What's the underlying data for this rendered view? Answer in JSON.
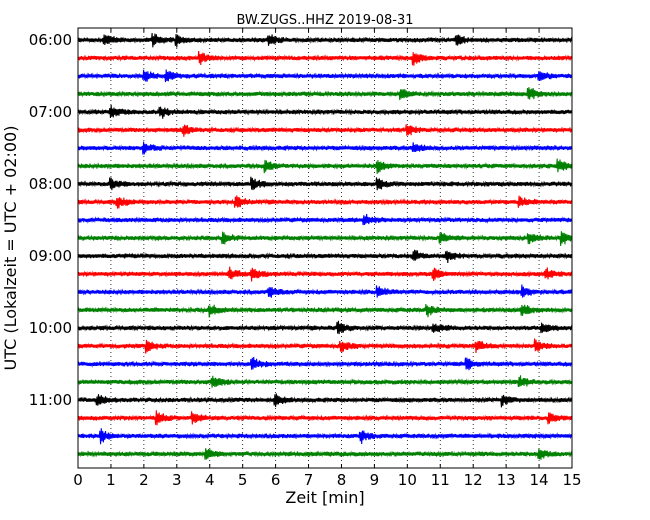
{
  "chart_data": {
    "type": "line",
    "title": "BW.ZUGS..HHZ 2019-08-31",
    "xlabel": "Zeit  [min]",
    "ylabel": "UTC (Lokalzeit = UTC + 02:00)",
    "xlim": [
      0,
      15
    ],
    "x_ticks": [
      "0",
      "1",
      "2",
      "3",
      "4",
      "5",
      "6",
      "7",
      "8",
      "9",
      "10",
      "11",
      "12",
      "13",
      "14",
      "15"
    ],
    "y_ticks": [
      "06:00",
      "07:00",
      "08:00",
      "09:00",
      "10:00",
      "11:00"
    ],
    "grid": "vertical dotted",
    "trace_colors": [
      "#000000",
      "#ff0000",
      "#0000ff",
      "#008000"
    ],
    "traces": [
      {
        "start": "06:00",
        "color": "#000000",
        "events": [
          0.8,
          2.3,
          3.0,
          5.8,
          11.5
        ]
      },
      {
        "start": "06:15",
        "color": "#ff0000",
        "events": [
          3.7,
          10.2
        ]
      },
      {
        "start": "06:30",
        "color": "#0000ff",
        "events": [
          2.0,
          2.7,
          14.0
        ]
      },
      {
        "start": "06:45",
        "color": "#008000",
        "events": [
          9.8,
          13.7
        ]
      },
      {
        "start": "07:00",
        "color": "#000000",
        "events": [
          1.0,
          2.5
        ]
      },
      {
        "start": "07:15",
        "color": "#ff0000",
        "events": [
          3.2,
          10.0
        ]
      },
      {
        "start": "07:30",
        "color": "#0000ff",
        "events": [
          2.0,
          10.2
        ]
      },
      {
        "start": "07:45",
        "color": "#008000",
        "events": [
          5.7,
          9.1,
          14.6
        ]
      },
      {
        "start": "08:00",
        "color": "#000000",
        "events": [
          1.0,
          5.3,
          9.1
        ]
      },
      {
        "start": "08:15",
        "color": "#ff0000",
        "events": [
          1.2,
          4.8,
          13.4
        ]
      },
      {
        "start": "08:30",
        "color": "#0000ff",
        "events": [
          8.7
        ]
      },
      {
        "start": "08:45",
        "color": "#008000",
        "events": [
          4.4,
          11.0,
          13.7,
          14.7
        ]
      },
      {
        "start": "09:00",
        "color": "#000000",
        "events": [
          10.2,
          11.2
        ]
      },
      {
        "start": "09:15",
        "color": "#ff0000",
        "events": [
          4.6,
          5.3,
          10.8,
          14.2
        ]
      },
      {
        "start": "09:30",
        "color": "#0000ff",
        "events": [
          5.8,
          9.1,
          13.5
        ]
      },
      {
        "start": "09:45",
        "color": "#008000",
        "events": [
          4.0,
          10.6,
          13.5
        ]
      },
      {
        "start": "10:00",
        "color": "#000000",
        "events": [
          7.9,
          10.8,
          14.1
        ]
      },
      {
        "start": "10:15",
        "color": "#ff0000",
        "events": [
          2.1,
          8.0,
          12.1,
          13.9
        ]
      },
      {
        "start": "10:30",
        "color": "#0000ff",
        "events": [
          5.3,
          11.8
        ]
      },
      {
        "start": "10:45",
        "color": "#008000",
        "events": [
          4.1,
          13.4
        ]
      },
      {
        "start": "11:00",
        "color": "#000000",
        "events": [
          0.6,
          6.0,
          12.9
        ]
      },
      {
        "start": "11:15",
        "color": "#ff0000",
        "events": [
          2.4,
          3.5,
          14.3
        ]
      },
      {
        "start": "11:30",
        "color": "#0000ff",
        "events": [
          0.7,
          8.6
        ]
      },
      {
        "start": "11:45",
        "color": "#008000",
        "events": [
          3.9,
          14.0
        ]
      }
    ]
  }
}
